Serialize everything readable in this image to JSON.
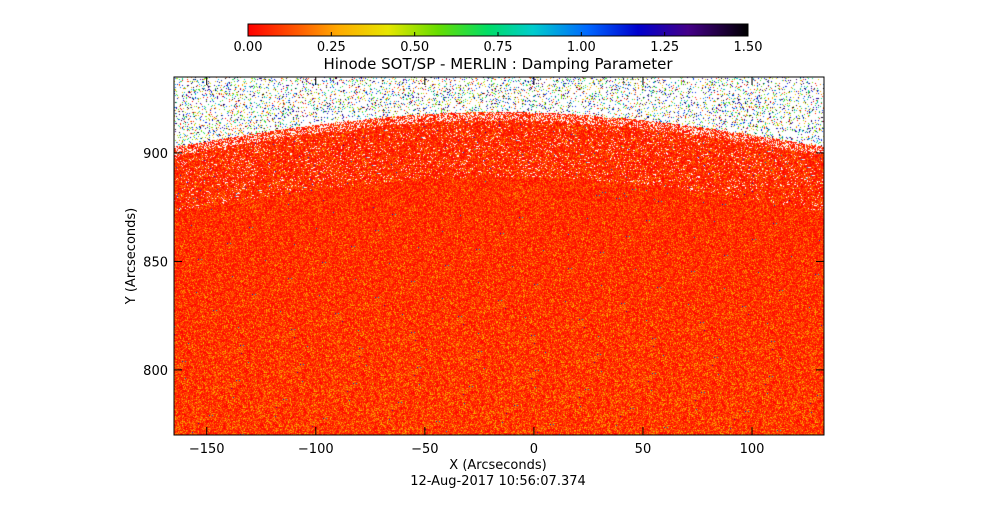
{
  "chart_data": {
    "type": "heatmap",
    "title": "Hinode SOT/SP - MERLIN : Damping Parameter",
    "xlabel": "X (Arcseconds)",
    "ylabel": "Y (Arcseconds)",
    "xlim": [
      -165,
      133
    ],
    "ylim": [
      770,
      935
    ],
    "x_ticks": [
      -150,
      -100,
      -50,
      0,
      50,
      100
    ],
    "x_tick_labels": [
      "−150",
      "−100",
      "−50",
      "0",
      "50",
      "100"
    ],
    "y_ticks": [
      800,
      850,
      900
    ],
    "y_tick_labels": [
      "800",
      "850",
      "900"
    ],
    "colorbar": {
      "range": [
        0.0,
        1.5
      ],
      "ticks": [
        0.0,
        0.25,
        0.5,
        0.75,
        1.0,
        1.25,
        1.5
      ],
      "tick_labels": [
        "0.00",
        "0.25",
        "0.50",
        "0.75",
        "1.00",
        "1.25",
        "1.50"
      ],
      "colormap": "rainbow (red → orange → yellow → green → cyan → blue → purple → black)"
    },
    "field_description": {
      "typical_value_range": [
        0.0,
        0.3
      ],
      "dominant_color": "#ff0000",
      "limb_arc_y_at_center": 919,
      "limb_arc_y_at_edges": 903,
      "off_limb_background": "#ffffff"
    },
    "timestamp": "12-Aug-2017 10:56:07.374",
    "grid": false,
    "legend": "colorbar at top"
  }
}
